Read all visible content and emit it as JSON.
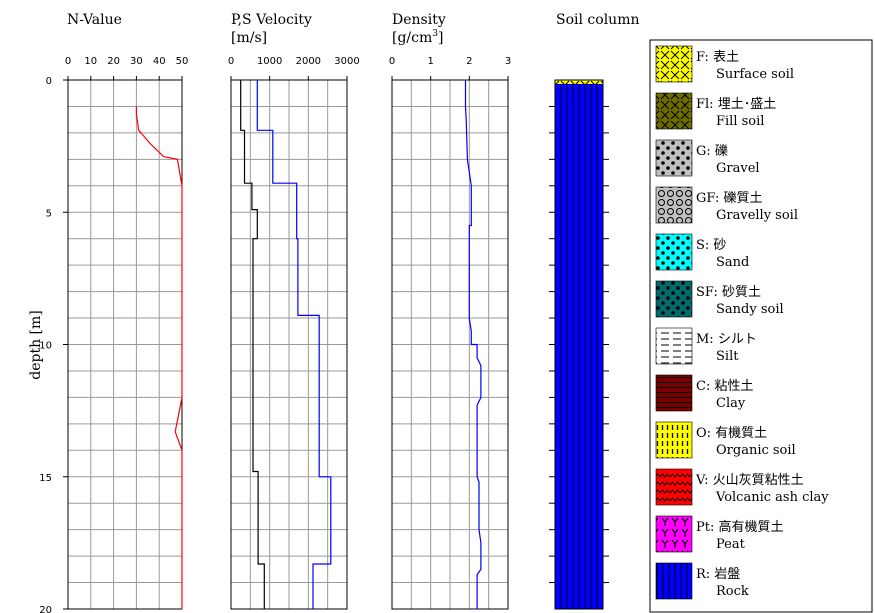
{
  "chart_data": [
    {
      "type": "line",
      "title": "N-Value",
      "ylabel": "depth [m]",
      "xlim": [
        0,
        50
      ],
      "ylim": [
        0,
        20
      ],
      "x_ticks": [
        0,
        10,
        20,
        30,
        40,
        50
      ],
      "y_ticks": [
        0,
        5,
        10,
        15,
        20
      ],
      "grid": true,
      "series": [
        {
          "color": "#ff0000",
          "points": [
            [
              30,
              1.0
            ],
            [
              30,
              1.3
            ],
            [
              31,
              1.9
            ],
            [
              32,
              2.0
            ],
            [
              36,
              2.4
            ],
            [
              42,
              2.9
            ],
            [
              48,
              3.0
            ],
            [
              50,
              4.0
            ],
            [
              50,
              12.0
            ],
            [
              47,
              13.3
            ],
            [
              50,
              14.0
            ],
            [
              50,
              20.0
            ]
          ]
        }
      ]
    },
    {
      "type": "line",
      "title": "P,S Velocity",
      "xlabel": "[m/s]",
      "xlim": [
        0,
        3000
      ],
      "ylim": [
        0,
        20
      ],
      "x_ticks": [
        0,
        1000,
        2000,
        3000
      ],
      "grid": true,
      "series": [
        {
          "color": "#000000",
          "points": [
            [
              250,
              0
            ],
            [
              250,
              1.9
            ],
            [
              350,
              1.9
            ],
            [
              350,
              3.9
            ],
            [
              540,
              3.9
            ],
            [
              540,
              4.9
            ],
            [
              680,
              4.9
            ],
            [
              680,
              6.0
            ],
            [
              570,
              6.0
            ],
            [
              570,
              14.8
            ],
            [
              700,
              14.8
            ],
            [
              700,
              18.3
            ],
            [
              860,
              18.3
            ],
            [
              860,
              20.0
            ]
          ]
        },
        {
          "color": "#0000ff",
          "points": [
            [
              680,
              0
            ],
            [
              680,
              1.9
            ],
            [
              1080,
              1.9
            ],
            [
              1080,
              3.9
            ],
            [
              1700,
              3.9
            ],
            [
              1700,
              6.0
            ],
            [
              1730,
              6.0
            ],
            [
              1730,
              8.9
            ],
            [
              2280,
              8.9
            ],
            [
              2280,
              15.0
            ],
            [
              2580,
              15.0
            ],
            [
              2580,
              18.3
            ],
            [
              2120,
              18.3
            ],
            [
              2120,
              20.0
            ]
          ]
        }
      ]
    },
    {
      "type": "line",
      "title": "Density",
      "xlabel": "[g/cm",
      "xlabel_sup": "3",
      "xlabel_end": "]",
      "xlim": [
        0,
        3
      ],
      "ylim": [
        0,
        20
      ],
      "x_ticks": [
        0,
        1,
        2,
        3
      ],
      "grid": true,
      "series": [
        {
          "color": "#0000ff",
          "points": [
            [
              1.9,
              0
            ],
            [
              1.9,
              1.0
            ],
            [
              1.92,
              1.5
            ],
            [
              1.95,
              3.0
            ],
            [
              2.05,
              4.0
            ],
            [
              2.05,
              5.5
            ],
            [
              2.0,
              5.5
            ],
            [
              2.0,
              7.8
            ],
            [
              2.0,
              9.0
            ],
            [
              2.05,
              9.5
            ],
            [
              2.05,
              10.0
            ],
            [
              2.2,
              10.0
            ],
            [
              2.2,
              10.5
            ],
            [
              2.3,
              10.8
            ],
            [
              2.3,
              12.0
            ],
            [
              2.2,
              12.3
            ],
            [
              2.2,
              15.0
            ],
            [
              2.25,
              15.2
            ],
            [
              2.25,
              17.0
            ],
            [
              2.3,
              17.5
            ],
            [
              2.3,
              18.5
            ],
            [
              2.2,
              18.7
            ],
            [
              2.2,
              20.0
            ]
          ]
        }
      ]
    },
    {
      "type": "column",
      "title": "Soil column",
      "ylim": [
        0,
        20
      ],
      "layers": [
        {
          "code": "F",
          "from": 0,
          "to": 0.15
        },
        {
          "code": "R",
          "from": 0.15,
          "to": 20
        }
      ]
    }
  ],
  "legend": [
    {
      "code": "F",
      "jp": "表土",
      "en": "Surface soil",
      "bg": "#ffff00",
      "fg": "#000000",
      "pattern": "cross"
    },
    {
      "code": "Fl",
      "jp": "埋土･盛土",
      "en": "Fill soil",
      "bg": "#6b6b00",
      "fg": "#000000",
      "pattern": "cross"
    },
    {
      "code": "G",
      "jp": "礫",
      "en": "Gravel",
      "bg": "#c0c0c0",
      "fg": "#000000",
      "pattern": "dots"
    },
    {
      "code": "GF",
      "jp": "礫質土",
      "en": "Gravelly soil",
      "bg": "#c0c0c0",
      "fg": "#000000",
      "pattern": "circles"
    },
    {
      "code": "S",
      "jp": "砂",
      "en": "Sand",
      "bg": "#00ffff",
      "fg": "#000000",
      "pattern": "dots"
    },
    {
      "code": "SF",
      "jp": "砂質土",
      "en": "Sandy soil",
      "bg": "#006b6b",
      "fg": "#000000",
      "pattern": "dots"
    },
    {
      "code": "M",
      "jp": "シルト",
      "en": "Silt",
      "bg": "#ffffff",
      "fg": "#000000",
      "pattern": "dashes"
    },
    {
      "code": "C",
      "jp": "粘性土",
      "en": "Clay",
      "bg": "#7a0000",
      "fg": "#000000",
      "pattern": "hlines"
    },
    {
      "code": "O",
      "jp": "有機質土",
      "en": "Organic soil",
      "bg": "#ffff00",
      "fg": "#000000",
      "pattern": "vdash"
    },
    {
      "code": "V",
      "jp": "火山灰質粘性土",
      "en": "Volcanic ash clay",
      "bg": "#ff0000",
      "fg": "#000000",
      "pattern": "wave"
    },
    {
      "code": "Pt",
      "jp": "高有機質土",
      "en": "Peat",
      "bg": "#ff00ff",
      "fg": "#000000",
      "pattern": "ymark"
    },
    {
      "code": "R",
      "jp": "岩盤",
      "en": "Rock",
      "bg": "#0000ff",
      "fg": "#000000",
      "pattern": "vlines"
    }
  ]
}
